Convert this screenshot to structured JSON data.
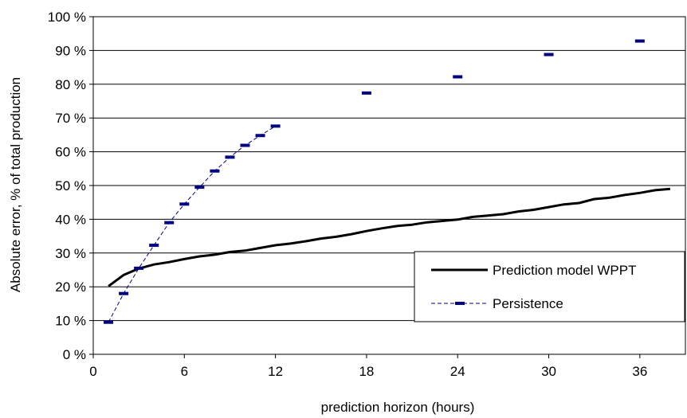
{
  "chart_data": {
    "type": "line",
    "xlabel": "prediction horizon (hours)",
    "ylabel": "Absolute error,  % of total production",
    "xlim": [
      0,
      39
    ],
    "ylim": [
      0,
      100
    ],
    "x_ticks": [
      {
        "value": 0,
        "label": "0"
      },
      {
        "value": 6,
        "label": "6"
      },
      {
        "value": 12,
        "label": "12"
      },
      {
        "value": 18,
        "label": "18"
      },
      {
        "value": 24,
        "label": "24"
      },
      {
        "value": 30,
        "label": "30"
      },
      {
        "value": 36,
        "label": "36"
      }
    ],
    "y_ticks": [
      {
        "value": 0,
        "label": "0 %"
      },
      {
        "value": 10,
        "label": "10 %"
      },
      {
        "value": 20,
        "label": "20 %"
      },
      {
        "value": 30,
        "label": "30 %"
      },
      {
        "value": 40,
        "label": "40 %"
      },
      {
        "value": 50,
        "label": "50 %"
      },
      {
        "value": 60,
        "label": "60 %"
      },
      {
        "value": 70,
        "label": "70 %"
      },
      {
        "value": 80,
        "label": "80 %"
      },
      {
        "value": 90,
        "label": "90 %"
      },
      {
        "value": 100,
        "label": "100 %"
      }
    ],
    "grid": "horizontal",
    "legend_position": "bottom-right",
    "series": [
      {
        "name": "Prediction model WPPT",
        "style": "solid",
        "color": "#000000",
        "x": [
          1,
          2,
          3,
          4,
          5,
          6,
          7,
          8,
          9,
          10,
          11,
          12,
          13,
          14,
          15,
          16,
          17,
          18,
          19,
          20,
          21,
          22,
          23,
          24,
          25,
          26,
          27,
          28,
          29,
          30,
          31,
          32,
          33,
          34,
          35,
          36,
          37,
          38
        ],
        "values": [
          20.2,
          23.5,
          25.4,
          26.6,
          27.3,
          28.2,
          29.0,
          29.5,
          30.3,
          30.7,
          31.5,
          32.3,
          32.8,
          33.5,
          34.3,
          34.8,
          35.6,
          36.5,
          37.3,
          38.0,
          38.4,
          39.1,
          39.5,
          39.9,
          40.7,
          41.1,
          41.5,
          42.3,
          42.8,
          43.6,
          44.4,
          44.8,
          46.0,
          46.4,
          47.2,
          47.8,
          48.6,
          49.0
        ]
      },
      {
        "name": "Persistence",
        "style": "dashed",
        "color": "#000080",
        "x": [
          1,
          2,
          3,
          4,
          5,
          6,
          7,
          8,
          9,
          10,
          11,
          12,
          18,
          24,
          30,
          36
        ],
        "values": [
          9.5,
          18.0,
          25.5,
          32.3,
          39.0,
          44.5,
          49.5,
          54.3,
          58.4,
          61.9,
          64.8,
          67.6,
          77.4,
          82.2,
          88.8,
          92.8
        ],
        "connected_range": [
          1,
          12
        ]
      }
    ]
  }
}
